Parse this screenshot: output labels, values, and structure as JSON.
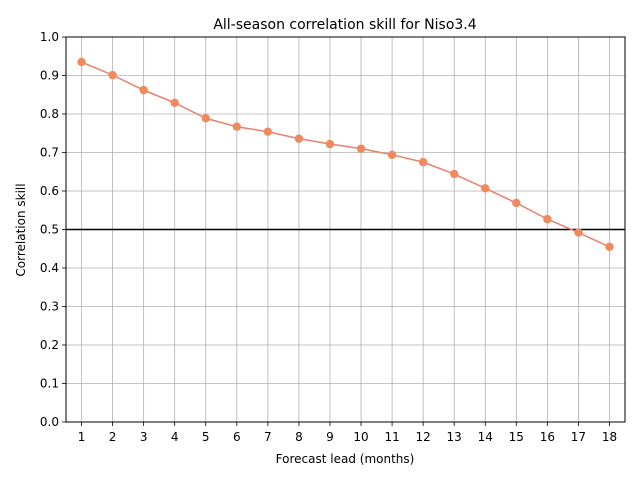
{
  "chart_data": {
    "type": "line",
    "title": "All-season correlation skill for Niso3.4",
    "xlabel": "Forecast lead (months)",
    "ylabel": "Correlation skill",
    "x": [
      1,
      2,
      3,
      4,
      5,
      6,
      7,
      8,
      9,
      10,
      11,
      12,
      13,
      14,
      15,
      16,
      17,
      18
    ],
    "series": [
      {
        "values": [
          0.935,
          0.901,
          0.862,
          0.829,
          0.789,
          0.767,
          0.754,
          0.736,
          0.722,
          0.71,
          0.694,
          0.675,
          0.644,
          0.607,
          0.569,
          0.527,
          0.492,
          0.455
        ],
        "line_color": "#e9806e",
        "marker_color": "#f08a5d"
      }
    ],
    "xlim": [
      0.5,
      18.5
    ],
    "ylim": [
      0.0,
      1.0
    ],
    "xticks": [
      "1",
      "2",
      "3",
      "4",
      "5",
      "6",
      "7",
      "8",
      "9",
      "10",
      "11",
      "12",
      "13",
      "14",
      "15",
      "16",
      "17",
      "18"
    ],
    "yticks": [
      "0.0",
      "0.1",
      "0.2",
      "0.3",
      "0.4",
      "0.5",
      "0.6",
      "0.7",
      "0.8",
      "0.9",
      "1.0"
    ],
    "reference_line": {
      "y": 0.5,
      "color": "#000000"
    },
    "grid": true
  }
}
